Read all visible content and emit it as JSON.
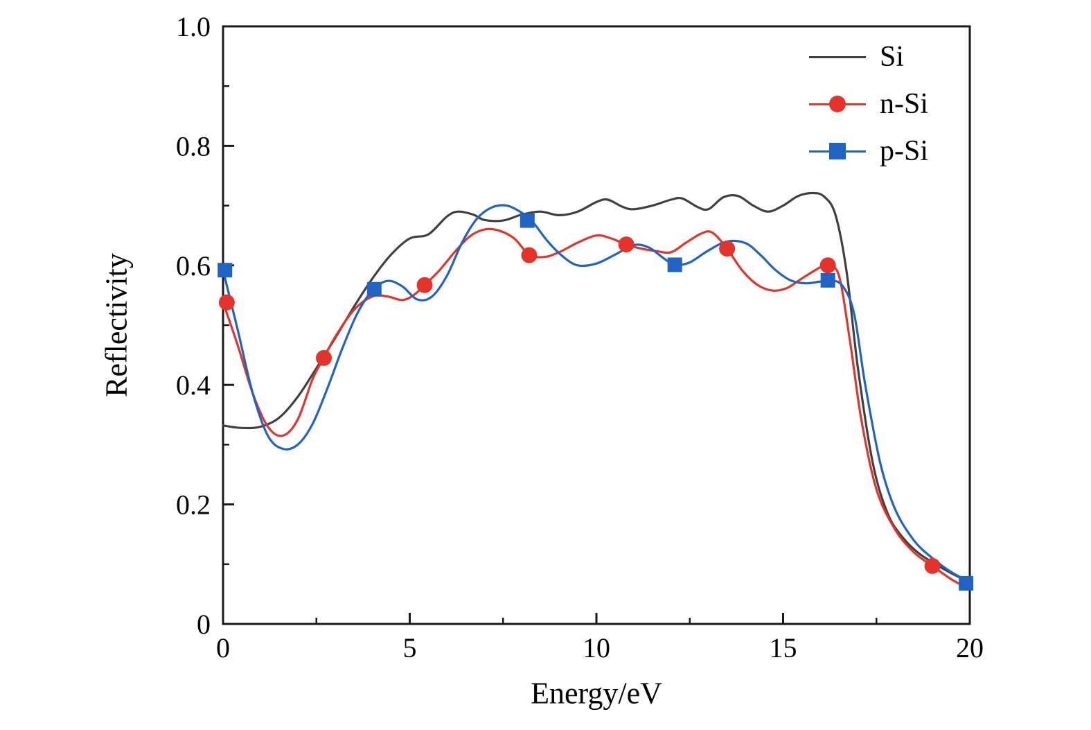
{
  "figure": {
    "background": "#ffffff",
    "axis_color": "#1a1a1a"
  },
  "chart_data": {
    "type": "line",
    "title": "",
    "xlabel": "Energy/eV",
    "ylabel": "Reflectivity",
    "xlim": [
      0,
      20
    ],
    "ylim": [
      0,
      1.0
    ],
    "x_ticks": [
      0,
      5,
      10,
      15,
      20
    ],
    "x_tick_labels": [
      "0",
      "5",
      "10",
      "15",
      "20"
    ],
    "y_ticks": [
      0,
      0.2,
      0.4,
      0.6,
      0.8,
      1.0
    ],
    "y_tick_labels": [
      "0",
      "0.2",
      "0.4",
      "0.6",
      "0.8",
      "1.0"
    ],
    "x_minor_step": 2.5,
    "y_minor_step": 0.1,
    "grid": false,
    "legend_position": "top-right",
    "series": [
      {
        "name": "Si",
        "color": "#404040",
        "marker": "none",
        "x": [
          0,
          0.5,
          1,
          1.5,
          2,
          2.5,
          3,
          3.5,
          4,
          4.5,
          5,
          5.5,
          6,
          6.3,
          6.7,
          7,
          7.5,
          8,
          8.5,
          9,
          9.5,
          10,
          10.3,
          10.7,
          11,
          11.5,
          12,
          12.3,
          12.7,
          13,
          13.4,
          13.8,
          14.2,
          14.6,
          15,
          15.4,
          15.8,
          16.1,
          16.4,
          16.7,
          17,
          17.4,
          17.8,
          18.2,
          18.6,
          19,
          19.5,
          20
        ],
        "y": [
          0.332,
          0.328,
          0.33,
          0.345,
          0.38,
          0.428,
          0.478,
          0.53,
          0.578,
          0.618,
          0.645,
          0.652,
          0.682,
          0.69,
          0.685,
          0.676,
          0.675,
          0.685,
          0.69,
          0.684,
          0.69,
          0.706,
          0.71,
          0.698,
          0.694,
          0.7,
          0.71,
          0.712,
          0.698,
          0.694,
          0.714,
          0.716,
          0.7,
          0.69,
          0.7,
          0.716,
          0.721,
          0.715,
          0.685,
          0.59,
          0.43,
          0.27,
          0.185,
          0.145,
          0.12,
          0.103,
          0.085,
          0.07
        ],
        "marker_x": [],
        "marker_y": []
      },
      {
        "name": "n-Si",
        "color": "#e63329",
        "marker": "circle",
        "x": [
          0,
          0.4,
          0.8,
          1.2,
          1.6,
          2,
          2.4,
          2.7,
          3,
          3.5,
          4,
          4.4,
          4.8,
          5.1,
          5.4,
          5.8,
          6.2,
          6.6,
          7,
          7.4,
          7.8,
          8.2,
          8.6,
          9,
          9.5,
          10,
          10.4,
          10.8,
          11.2,
          11.6,
          12,
          12.4,
          12.8,
          13.1,
          13.5,
          13.9,
          14.3,
          14.7,
          15.1,
          15.5,
          16,
          16.2,
          16.5,
          16.8,
          17.1,
          17.5,
          18,
          18.5,
          19,
          19.5,
          20
        ],
        "y": [
          0.538,
          0.465,
          0.385,
          0.33,
          0.315,
          0.342,
          0.41,
          0.445,
          0.48,
          0.525,
          0.548,
          0.548,
          0.542,
          0.55,
          0.567,
          0.592,
          0.622,
          0.648,
          0.66,
          0.658,
          0.645,
          0.618,
          0.614,
          0.622,
          0.638,
          0.65,
          0.645,
          0.635,
          0.628,
          0.624,
          0.622,
          0.638,
          0.653,
          0.655,
          0.628,
          0.592,
          0.568,
          0.558,
          0.562,
          0.578,
          0.597,
          0.6,
          0.582,
          0.47,
          0.34,
          0.225,
          0.158,
          0.12,
          0.097,
          0.075,
          0.058
        ],
        "marker_x": [
          0.1,
          2.7,
          5.4,
          8.2,
          10.8,
          13.5,
          16.2,
          19.0
        ],
        "marker_y": [
          0.538,
          0.445,
          0.567,
          0.617,
          0.635,
          0.628,
          0.6,
          0.097
        ]
      },
      {
        "name": "p-Si",
        "color": "#1f63c4",
        "marker": "square",
        "x": [
          0,
          0.4,
          0.8,
          1.2,
          1.6,
          2,
          2.4,
          2.8,
          3.2,
          3.6,
          4,
          4.4,
          4.8,
          5.2,
          5.6,
          6,
          6.4,
          6.8,
          7.2,
          7.6,
          8,
          8.3,
          8.7,
          9.1,
          9.5,
          10,
          10.5,
          11,
          11.4,
          11.8,
          12.1,
          12.5,
          13,
          13.5,
          14,
          14.4,
          14.8,
          15.2,
          15.6,
          16,
          16.3,
          16.6,
          16.9,
          17.2,
          17.6,
          18,
          18.5,
          19,
          19.5,
          20
        ],
        "y": [
          0.592,
          0.49,
          0.385,
          0.315,
          0.293,
          0.3,
          0.335,
          0.395,
          0.462,
          0.52,
          0.558,
          0.574,
          0.565,
          0.543,
          0.548,
          0.583,
          0.638,
          0.678,
          0.697,
          0.7,
          0.688,
          0.672,
          0.64,
          0.615,
          0.6,
          0.603,
          0.618,
          0.634,
          0.63,
          0.612,
          0.601,
          0.605,
          0.625,
          0.64,
          0.637,
          0.617,
          0.592,
          0.575,
          0.57,
          0.573,
          0.575,
          0.565,
          0.52,
          0.4,
          0.27,
          0.192,
          0.14,
          0.11,
          0.087,
          0.07
        ],
        "marker_x": [
          0.05,
          4.05,
          8.15,
          12.1,
          16.2,
          19.9
        ],
        "marker_y": [
          0.592,
          0.56,
          0.675,
          0.601,
          0.575,
          0.068
        ]
      }
    ]
  }
}
